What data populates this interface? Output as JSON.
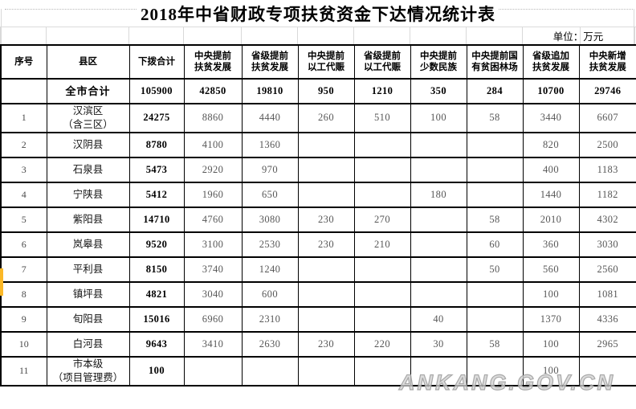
{
  "title": "2018年中省财政专项扶贫资金下达情况统计表",
  "unit_label": "单位：万元",
  "watermark": "ANKANG.GOV.CN",
  "colors": {
    "table_border": "#000000",
    "value_text": "#575757",
    "emphasis_text": "#000000",
    "highlight_stripe": "#fbb827",
    "faint_gridline": "#d9d9d9",
    "watermark_outline": "#9e9e9e"
  },
  "table": {
    "columns": [
      {
        "label": "序号"
      },
      {
        "label": "县区"
      },
      {
        "label": "下拨合计"
      },
      {
        "label": "中央提前\n扶贫发展"
      },
      {
        "label": "省级提前\n扶贫发展"
      },
      {
        "label": "中央提前\n以工代赈"
      },
      {
        "label": "省级提前\n以工代赈"
      },
      {
        "label": "中央提前\n少数民族"
      },
      {
        "label": "中央提前国\n有贫困林场"
      },
      {
        "label": "省级追加\n扶贫发展"
      },
      {
        "label": "中央新增\n扶贫发展"
      }
    ],
    "rows": [
      {
        "no": "",
        "name": "全市合计",
        "emphasis": true,
        "values": [
          "105900",
          "42850",
          "19810",
          "950",
          "1210",
          "350",
          "284",
          "10700",
          "29746"
        ]
      },
      {
        "no": "1",
        "name": "汉滨区\n（含三区）",
        "values": [
          "24275",
          "8860",
          "4440",
          "260",
          "510",
          "100",
          "58",
          "3440",
          "6607"
        ]
      },
      {
        "no": "2",
        "name": "汉阴县",
        "values": [
          "8780",
          "4100",
          "1360",
          "",
          "",
          "",
          "",
          "820",
          "2500"
        ]
      },
      {
        "no": "3",
        "name": "石泉县",
        "values": [
          "5473",
          "2920",
          "970",
          "",
          "",
          "",
          "",
          "400",
          "1183"
        ]
      },
      {
        "no": "4",
        "name": "宁陕县",
        "values": [
          "5412",
          "1960",
          "650",
          "",
          "",
          "180",
          "",
          "1440",
          "1182"
        ]
      },
      {
        "no": "5",
        "name": "紫阳县",
        "values": [
          "14710",
          "4760",
          "3080",
          "230",
          "270",
          "",
          "58",
          "2010",
          "4302"
        ]
      },
      {
        "no": "6",
        "name": "岚皋县",
        "values": [
          "9520",
          "3100",
          "2530",
          "230",
          "210",
          "",
          "60",
          "360",
          "3030"
        ]
      },
      {
        "no": "7",
        "name": "平利县",
        "highlighted": true,
        "values": [
          "8150",
          "3740",
          "1240",
          "",
          "",
          "",
          "50",
          "560",
          "2560"
        ]
      },
      {
        "no": "8",
        "name": "镇坪县",
        "values": [
          "4821",
          "3040",
          "600",
          "",
          "",
          "",
          "",
          "100",
          "1081"
        ]
      },
      {
        "no": "9",
        "name": "旬阳县",
        "values": [
          "15016",
          "6960",
          "2310",
          "",
          "",
          "40",
          "",
          "1370",
          "4336"
        ]
      },
      {
        "no": "10",
        "name": "白河县",
        "values": [
          "9643",
          "3410",
          "2630",
          "230",
          "220",
          "30",
          "58",
          "100",
          "2965"
        ]
      },
      {
        "no": "11",
        "name": "市本级\n（项目管理费）",
        "values": [
          "100",
          "",
          "",
          "",
          "",
          "",
          "",
          "100",
          ""
        ]
      }
    ]
  }
}
